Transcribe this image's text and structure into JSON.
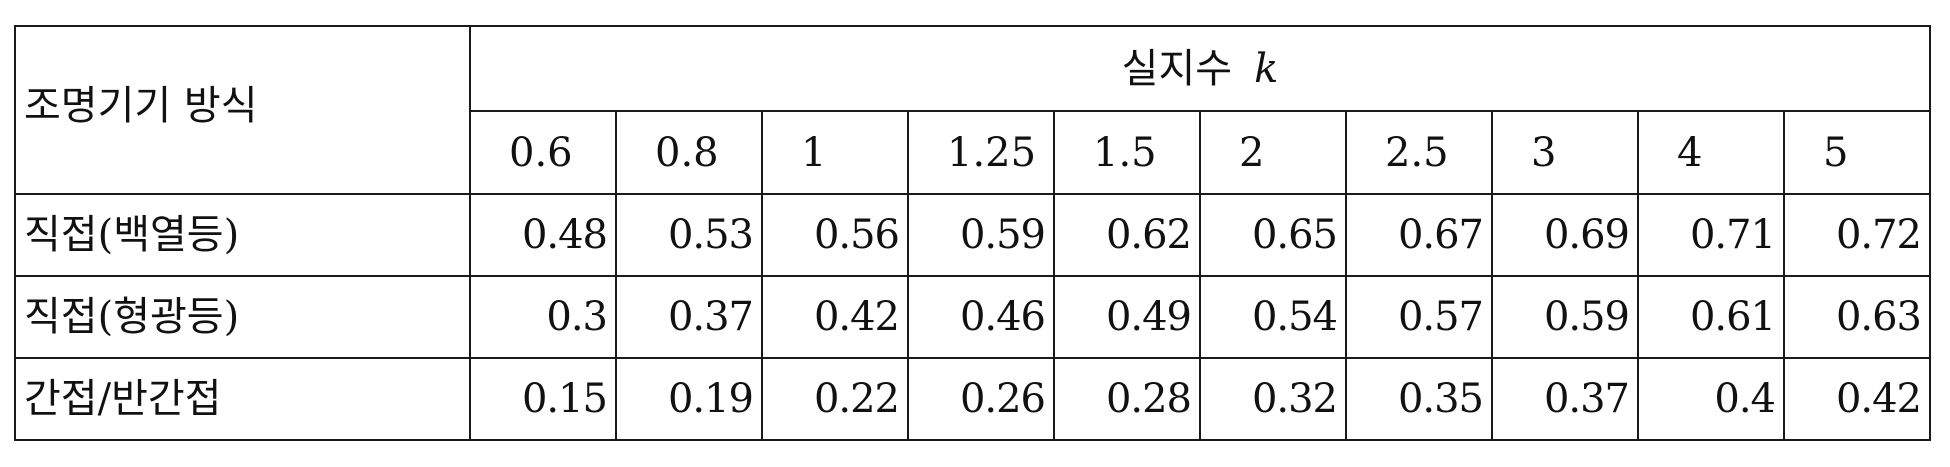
{
  "table": {
    "row_header_label": "조명기기 방식",
    "k_header_label": "실지수",
    "k_symbol": "k",
    "k_values": [
      "0.6",
      "0.8",
      "1",
      "1.25",
      "1.5",
      "2",
      "2.5",
      "3",
      "4",
      "5"
    ],
    "rows": [
      {
        "label": "직접(백열등)",
        "values": [
          "0.48",
          "0.53",
          "0.56",
          "0.59",
          "0.62",
          "0.65",
          "0.67",
          "0.69",
          "0.71",
          "0.72"
        ]
      },
      {
        "label": "직접(형광등)",
        "values": [
          "0.3",
          "0.37",
          "0.42",
          "0.46",
          "0.49",
          "0.54",
          "0.57",
          "0.59",
          "0.61",
          "0.63"
        ]
      },
      {
        "label": "간접/반간접",
        "values": [
          "0.15",
          "0.19",
          "0.22",
          "0.26",
          "0.28",
          "0.32",
          "0.35",
          "0.37",
          "0.4",
          "0.42"
        ]
      }
    ]
  }
}
